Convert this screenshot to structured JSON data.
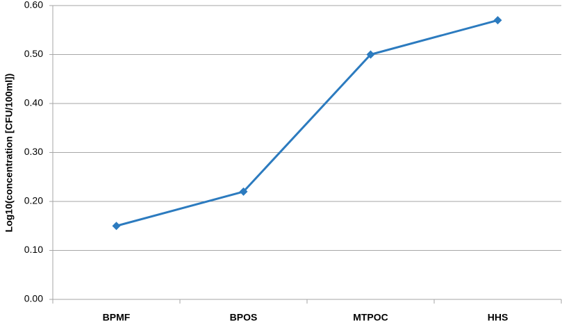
{
  "chart_data": {
    "type": "line",
    "y_label": "Log10(concentration [CFU/100ml])",
    "categories": [
      "BPMF",
      "BPOS",
      "MTPOC",
      "HHS"
    ],
    "values": [
      0.15,
      0.22,
      0.5,
      0.57
    ],
    "color": "#2c7bbf",
    "ylim": [
      0,
      0.6
    ],
    "yticks": [
      {
        "value": 0,
        "label": "0.00"
      },
      {
        "value": 0.1,
        "label": "0.10"
      },
      {
        "value": 0.2,
        "label": "0.20"
      },
      {
        "value": 0.3,
        "label": "0.30"
      },
      {
        "value": 0.4,
        "label": "0.40"
      },
      {
        "value": 0.5,
        "label": "0.50"
      },
      {
        "value": 0.6,
        "label": "0.60"
      }
    ],
    "grid": true
  }
}
